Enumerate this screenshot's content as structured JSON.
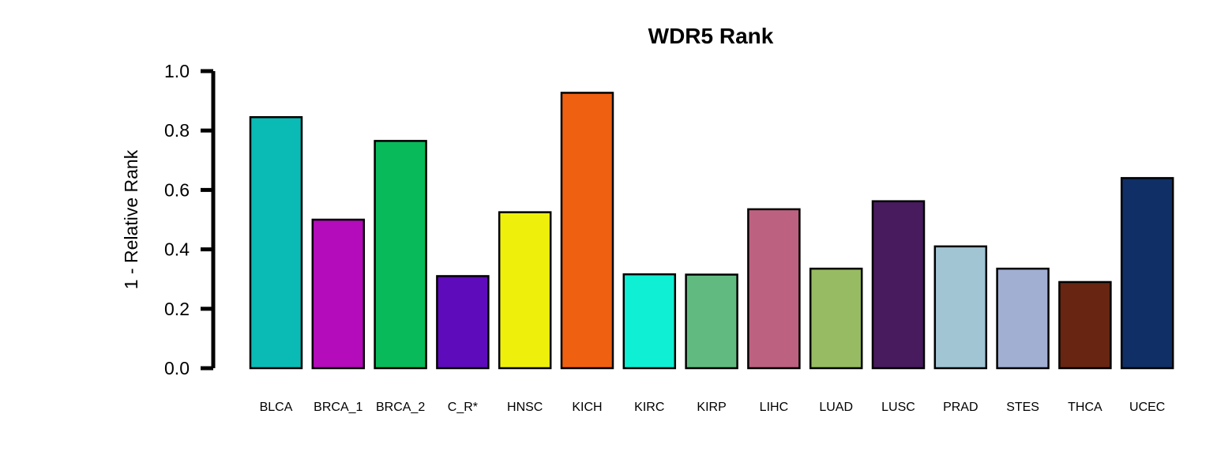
{
  "chart_data": {
    "type": "bar",
    "title": "WDR5 Rank",
    "xlabel": "",
    "ylabel": "1 - Relative Rank",
    "ylim": [
      0,
      1
    ],
    "yticks": [
      "0.0",
      "0.2",
      "0.4",
      "0.6",
      "0.8",
      "1.0"
    ],
    "grid": false,
    "categories": [
      "BLCA",
      "BRCA_1",
      "BRCA_2",
      "C_R*",
      "HNSC",
      "KICH",
      "KIRC",
      "KIRP",
      "LIHC",
      "LUAD",
      "LUSC",
      "PRAD",
      "STES",
      "THCA",
      "UCEC"
    ],
    "values": [
      0.845,
      0.5,
      0.765,
      0.31,
      0.525,
      0.927,
      0.316,
      0.315,
      0.535,
      0.335,
      0.562,
      0.41,
      0.335,
      0.29,
      0.64
    ],
    "colors": [
      "#0ABBB5",
      "#B40BBB",
      "#09BA5A",
      "#5E0BBB",
      "#EEF00C",
      "#F06011",
      "#0FEFD4",
      "#61BB81",
      "#BD6180",
      "#97BB62",
      "#471B5E",
      "#A2C5D4",
      "#A1AFD3",
      "#672512",
      "#0F2F66"
    ]
  }
}
